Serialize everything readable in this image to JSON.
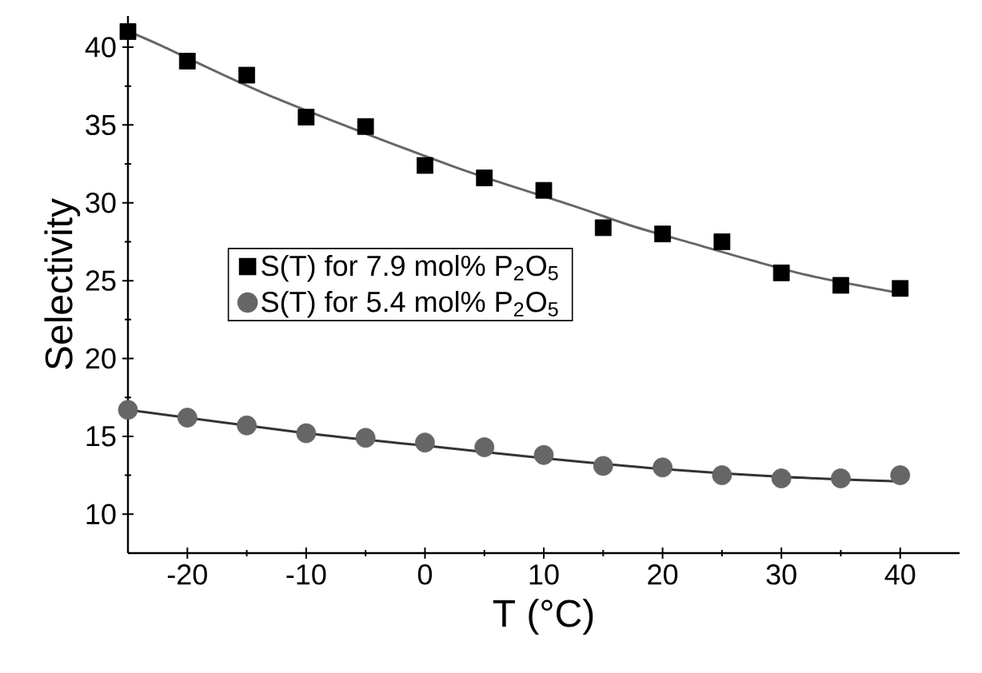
{
  "chart_data": {
    "type": "scatter",
    "xlabel": "T (°C)",
    "ylabel": "Selectivity",
    "xlim": [
      -25,
      45
    ],
    "ylim": [
      7.5,
      42
    ],
    "xticks": [
      -20,
      -10,
      0,
      10,
      20,
      30,
      40
    ],
    "yticks": [
      10,
      15,
      20,
      25,
      30,
      35,
      40
    ],
    "legend": "left",
    "grid": false,
    "series": [
      {
        "name": "S(T) for 7.9 mol% P$_{2}$O$_{5}$",
        "color": "#000000",
        "marker": "square",
        "x": [
          -25,
          -20,
          -15,
          -10,
          -5,
          0,
          5,
          10,
          15,
          20,
          25,
          30,
          35,
          40
        ],
        "values": [
          41,
          39.1,
          38.2,
          35.5,
          34.9,
          32.4,
          31.6,
          30.8,
          28.4,
          28.0,
          27.5,
          25.5,
          24.7,
          24.5
        ]
      },
      {
        "name": "S(T) for 5.4 mol% P$_{2}$O$_{5}$",
        "color": "#666666",
        "marker": "circle",
        "x": [
          -25,
          -20,
          -15,
          -10,
          -5,
          0,
          5,
          10,
          15,
          20,
          25,
          30,
          35,
          40
        ],
        "values": [
          16.7,
          16.2,
          15.7,
          15.2,
          14.9,
          14.6,
          14.3,
          13.8,
          13.1,
          13.0,
          12.5,
          12.3,
          12.3,
          12.5
        ]
      },
      {
        "type": "line",
        "color": "#666666",
        "marker": "none",
        "x": [
          -25,
          -22.5,
          -12.5,
          2.5,
          12.5,
          17.5,
          22.5,
          27.5,
          32.5,
          40
        ],
        "values": [
          41,
          40.2,
          36.7,
          32.3,
          29.8,
          28.5,
          27.4,
          26.3,
          25.3,
          24.2
        ]
      },
      {
        "type": "line",
        "color": "#333333",
        "marker": "none",
        "x": [
          -25,
          -10,
          0,
          10,
          20,
          30,
          40
        ],
        "values": [
          16.7,
          15.2,
          14.4,
          13.6,
          12.9,
          12.4,
          12.1
        ]
      }
    ]
  }
}
